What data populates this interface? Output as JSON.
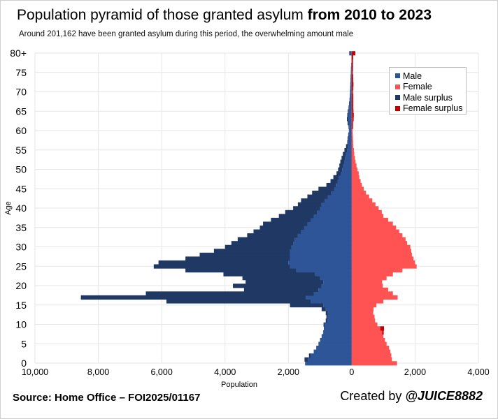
{
  "header": {
    "title_regular": "Population pyramid of those granted asylum",
    "title_bold": "from 2010 to 2023",
    "subtitle": "Around 201,162 have been granted asylum during this period, the overwhelming amount male"
  },
  "footer": {
    "source": "Source: Home Office – FOI2025/01167",
    "created_prefix": "Created by ",
    "created_handle": "@JUICE8882"
  },
  "colors": {
    "male": "#2e5597",
    "female": "#ff5252",
    "male_surplus": "#1f3864",
    "female_surplus": "#c00000",
    "grid": "#e6e6e6"
  },
  "legend": [
    {
      "label": "Male",
      "color": "#2e5597"
    },
    {
      "label": "Female",
      "color": "#ff5252"
    },
    {
      "label": "Male surplus",
      "color": "#1f3864"
    },
    {
      "label": "Female surplus",
      "color": "#c00000"
    }
  ],
  "chart_data": {
    "type": "bar",
    "orientation": "horizontal",
    "xlabel": "Population",
    "ylabel": "Age",
    "xlim": [
      -10000,
      4000
    ],
    "x_ticks": [
      -10000,
      -8000,
      -6000,
      -4000,
      -2000,
      0,
      2000,
      4000
    ],
    "x_tick_labels": [
      "10,000",
      "8,000",
      "6,000",
      "4,000",
      "2,000",
      "0",
      "2,000",
      "4,000"
    ],
    "y_tick_labels": [
      "0",
      "5",
      "10",
      "15",
      "20",
      "25",
      "30",
      "35",
      "40",
      "45",
      "50",
      "55",
      "60",
      "65",
      "70",
      "75",
      "80+"
    ],
    "grid": true,
    "legend_position": "top-right",
    "ages": [
      0,
      1,
      2,
      3,
      4,
      5,
      6,
      7,
      8,
      9,
      10,
      11,
      12,
      13,
      14,
      15,
      16,
      17,
      18,
      19,
      20,
      21,
      22,
      23,
      24,
      25,
      26,
      27,
      28,
      29,
      30,
      31,
      32,
      33,
      34,
      35,
      36,
      37,
      38,
      39,
      40,
      41,
      42,
      43,
      44,
      45,
      46,
      47,
      48,
      49,
      50,
      51,
      52,
      53,
      54,
      55,
      56,
      57,
      58,
      59,
      60,
      61,
      62,
      63,
      64,
      65,
      66,
      67,
      68,
      69,
      70,
      71,
      72,
      73,
      74,
      75,
      76,
      77,
      78,
      79,
      80
    ],
    "male": [
      1450,
      1380,
      1300,
      1200,
      1120,
      1050,
      1000,
      950,
      900,
      880,
      850,
      780,
      760,
      750,
      820,
      900,
      1300,
      1450,
      1200,
      1050,
      950,
      900,
      1000,
      1150,
      1750,
      1950,
      2000,
      1950,
      1950,
      1950,
      1900,
      1850,
      1800,
      1700,
      1600,
      1500,
      1400,
      1300,
      1200,
      1100,
      1000,
      950,
      850,
      750,
      650,
      550,
      500,
      450,
      400,
      350,
      300,
      270,
      240,
      210,
      180,
      150,
      120,
      110,
      100,
      90,
      80,
      80,
      90,
      100,
      110,
      100,
      80,
      70,
      60,
      55,
      50,
      45,
      40,
      35,
      30,
      25,
      20,
      15,
      10,
      10,
      80
    ],
    "female": [
      1430,
      1270,
      1250,
      1220,
      1180,
      1100,
      1050,
      1000,
      960,
      900,
      810,
      740,
      720,
      680,
      690,
      780,
      1000,
      1450,
      1300,
      1150,
      980,
      960,
      1100,
      1300,
      1600,
      2050,
      2000,
      1950,
      1900,
      1880,
      1850,
      1750,
      1700,
      1600,
      1500,
      1400,
      1300,
      1150,
      1000,
      950,
      850,
      750,
      650,
      550,
      450,
      380,
      320,
      280,
      240,
      220,
      180,
      150,
      120,
      100,
      80,
      70,
      50,
      45,
      40,
      35,
      30,
      25,
      20,
      20,
      15,
      15,
      10,
      10,
      10,
      10,
      10,
      10,
      5,
      5,
      5,
      5,
      5,
      5,
      5,
      5,
      5
    ],
    "male_surplus": [
      20,
      110,
      50,
      0,
      0,
      0,
      0,
      0,
      0,
      0,
      40,
      40,
      40,
      70,
      130,
      1050,
      4550,
      7100,
      5300,
      2350,
      2800,
      2450,
      2450,
      2900,
      3500,
      4300,
      4100,
      3300,
      2850,
      2400,
      2100,
      1950,
      1800,
      1600,
      1500,
      1400,
      1400,
      1250,
      1100,
      1000,
      850,
      750,
      750,
      650,
      600,
      500,
      300,
      220,
      180,
      130,
      130,
      120,
      120,
      110,
      100,
      80,
      60,
      30,
      30,
      20,
      10,
      20,
      40,
      50,
      30,
      25,
      20,
      15,
      10,
      5,
      5,
      5,
      5,
      5,
      5,
      5,
      5,
      5,
      0,
      0,
      0
    ],
    "female_surplus": [
      0,
      0,
      0,
      0,
      0,
      0,
      0,
      0,
      50,
      120,
      0,
      0,
      0,
      0,
      0,
      0,
      0,
      0,
      0,
      0,
      0,
      0,
      0,
      0,
      0,
      0,
      0,
      0,
      0,
      0,
      0,
      0,
      0,
      0,
      0,
      0,
      0,
      0,
      0,
      0,
      0,
      0,
      0,
      0,
      0,
      0,
      0,
      0,
      0,
      0,
      0,
      0,
      0,
      0,
      0,
      0,
      0,
      0,
      0,
      0,
      0,
      20,
      25,
      40,
      50,
      40,
      40,
      40,
      40,
      40,
      30,
      40,
      50,
      40,
      40,
      30,
      35,
      35,
      35,
      40,
      110
    ]
  }
}
